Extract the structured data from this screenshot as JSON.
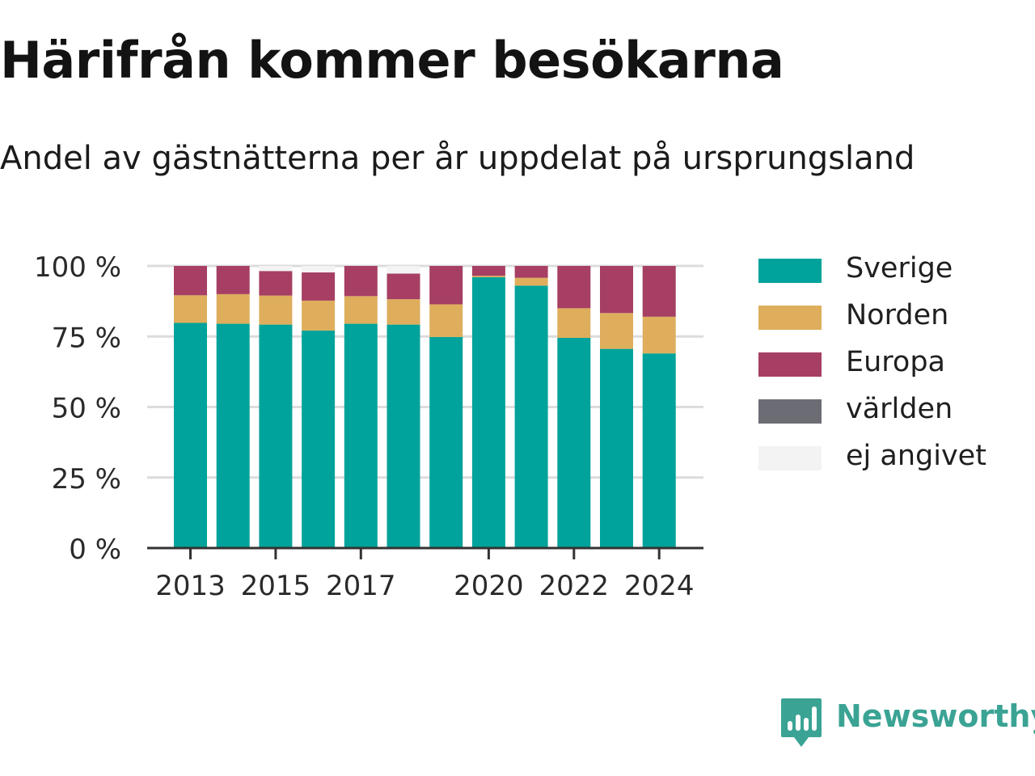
{
  "title": "Härifrån kommer besökarna",
  "subtitle": "Andel av gästnätterna per år uppdelat på ursprungsland",
  "brand": {
    "name": "Newsworthy",
    "icon": "newsworthy-logo-icon"
  },
  "colors": {
    "Sverige": "#00a39b",
    "Norden": "#deae5c",
    "Europa": "#a63f63",
    "världen": "#6c6c74",
    "ej angivet": "#f3f3f3",
    "grid": "#dcdcdc",
    "axis": "#333333"
  },
  "legend": [
    {
      "label": "Sverige",
      "color": "#00a39b"
    },
    {
      "label": "Norden",
      "color": "#deae5c"
    },
    {
      "label": "Europa",
      "color": "#a63f63"
    },
    {
      "label": "världen",
      "color": "#6c6c74"
    },
    {
      "label": "ej angivet",
      "color": "#f3f3f3"
    }
  ],
  "chart_data": {
    "type": "bar",
    "stacked": true,
    "x": [
      2013,
      2014,
      2015,
      2016,
      2017,
      2018,
      2019,
      2020,
      2021,
      2022,
      2023,
      2024
    ],
    "x_tick_labels": [
      "2013",
      "2015",
      "2017",
      "2020",
      "2022",
      "2024"
    ],
    "y_ticks": [
      0,
      25,
      50,
      75,
      100
    ],
    "y_tick_labels": [
      "0 %",
      "25 %",
      "50 %",
      "75 %",
      "100 %"
    ],
    "ylim": [
      0,
      100
    ],
    "grid": true,
    "legend_position": "right",
    "series": [
      {
        "name": "Sverige",
        "values": [
          79.8,
          79.5,
          79.2,
          77.1,
          79.5,
          79.2,
          74.8,
          96.0,
          93.0,
          74.5,
          70.6,
          69.0
        ]
      },
      {
        "name": "Norden",
        "values": [
          9.8,
          10.5,
          10.3,
          10.6,
          9.8,
          9.0,
          11.6,
          0.5,
          2.8,
          10.5,
          12.7,
          13.0
        ]
      },
      {
        "name": "Europa",
        "values": [
          10.4,
          10.0,
          8.7,
          10.0,
          10.7,
          9.1,
          13.6,
          3.5,
          4.2,
          15.0,
          16.7,
          18.0
        ]
      },
      {
        "name": "världen",
        "values": [
          0,
          0,
          0,
          0,
          0,
          0,
          0,
          0,
          0,
          0,
          0,
          0
        ]
      },
      {
        "name": "ej angivet",
        "values": [
          0,
          0,
          1.8,
          2.3,
          0,
          2.7,
          0,
          0,
          0,
          0,
          0,
          0
        ]
      }
    ]
  }
}
